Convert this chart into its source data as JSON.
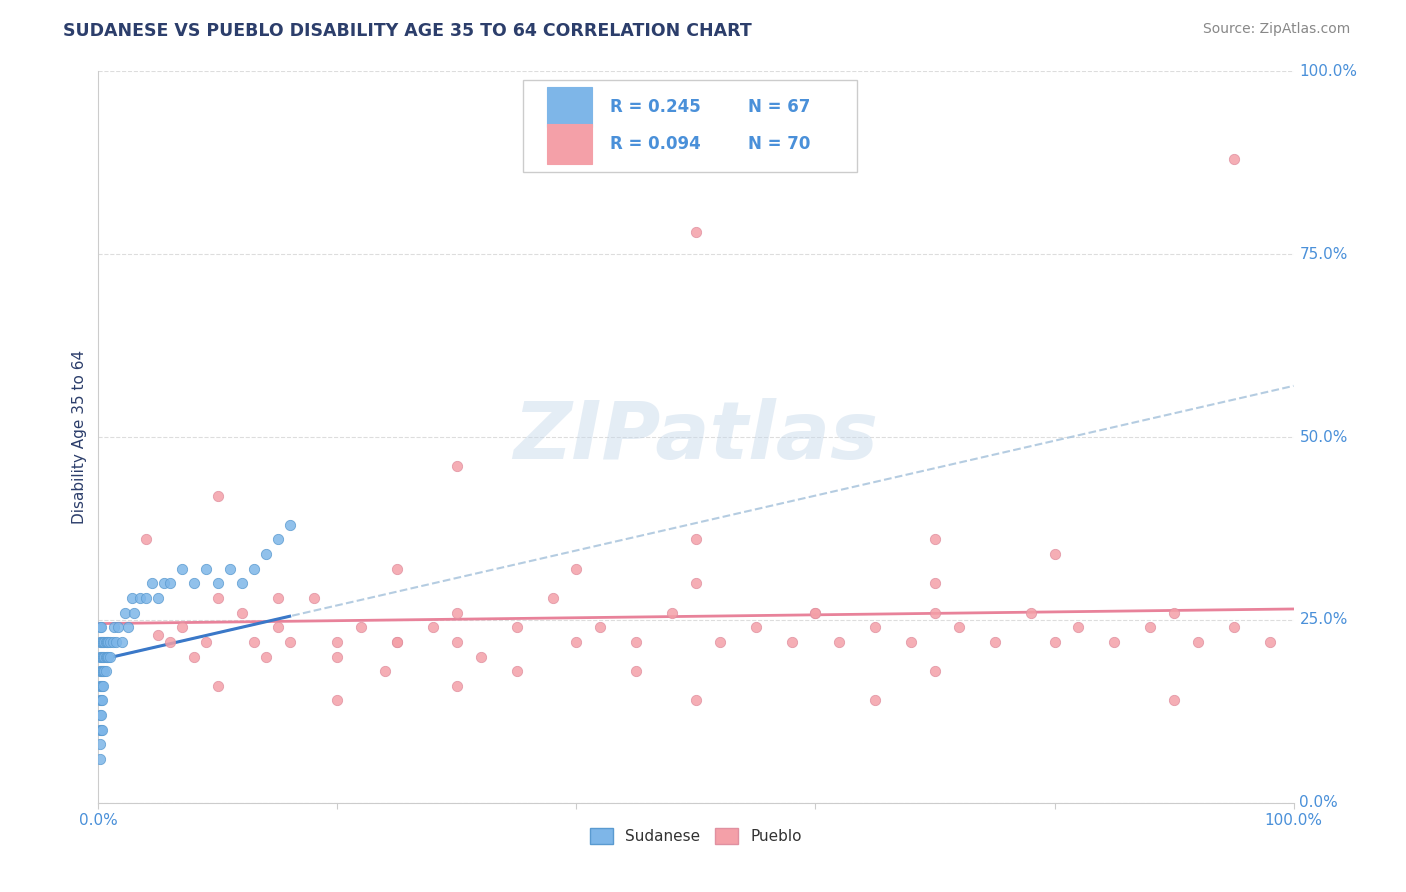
{
  "title": "SUDANESE VS PUEBLO DISABILITY AGE 35 TO 64 CORRELATION CHART",
  "source_text": "Source: ZipAtlas.com",
  "ylabel": "Disability Age 35 to 64",
  "watermark": "ZIPatlas",
  "xlim": [
    0,
    1
  ],
  "ylim": [
    0,
    1
  ],
  "ytick_positions": [
    0,
    0.25,
    0.5,
    0.75,
    1.0
  ],
  "ytick_labels": [
    "0.0%",
    "25.0%",
    "50.0%",
    "75.0%",
    "100.0%"
  ],
  "color_sudanese": "#7EB6E8",
  "color_pueblo": "#F4A0A8",
  "background_color": "#FFFFFF",
  "grid_color": "#DDDDDD",
  "title_color": "#2C3E6B",
  "axis_label_color": "#2C3E6B",
  "tick_label_color": "#4A90D9",
  "sudanese_x": [
    0.001,
    0.001,
    0.001,
    0.001,
    0.001,
    0.001,
    0.001,
    0.001,
    0.001,
    0.001,
    0.002,
    0.002,
    0.002,
    0.002,
    0.002,
    0.002,
    0.002,
    0.002,
    0.003,
    0.003,
    0.003,
    0.003,
    0.003,
    0.003,
    0.004,
    0.004,
    0.004,
    0.004,
    0.005,
    0.005,
    0.005,
    0.006,
    0.006,
    0.006,
    0.007,
    0.007,
    0.008,
    0.008,
    0.01,
    0.01,
    0.012,
    0.013,
    0.015,
    0.016,
    0.02,
    0.022,
    0.025,
    0.028,
    0.03,
    0.035,
    0.04,
    0.045,
    0.05,
    0.055,
    0.06,
    0.07,
    0.08,
    0.09,
    0.1,
    0.11,
    0.12,
    0.13,
    0.14,
    0.15,
    0.16
  ],
  "sudanese_y": [
    0.18,
    0.2,
    0.22,
    0.16,
    0.14,
    0.24,
    0.12,
    0.1,
    0.08,
    0.06,
    0.18,
    0.2,
    0.22,
    0.16,
    0.14,
    0.12,
    0.1,
    0.24,
    0.18,
    0.2,
    0.22,
    0.16,
    0.14,
    0.1,
    0.18,
    0.2,
    0.22,
    0.16,
    0.18,
    0.2,
    0.22,
    0.18,
    0.2,
    0.22,
    0.2,
    0.22,
    0.2,
    0.22,
    0.2,
    0.22,
    0.22,
    0.24,
    0.22,
    0.24,
    0.22,
    0.26,
    0.24,
    0.28,
    0.26,
    0.28,
    0.28,
    0.3,
    0.28,
    0.3,
    0.3,
    0.32,
    0.3,
    0.32,
    0.3,
    0.32,
    0.3,
    0.32,
    0.34,
    0.36,
    0.38
  ],
  "pueblo_x": [
    0.04,
    0.05,
    0.06,
    0.07,
    0.08,
    0.09,
    0.1,
    0.12,
    0.13,
    0.14,
    0.15,
    0.16,
    0.18,
    0.2,
    0.22,
    0.24,
    0.25,
    0.28,
    0.3,
    0.32,
    0.35,
    0.38,
    0.4,
    0.42,
    0.45,
    0.48,
    0.5,
    0.52,
    0.55,
    0.58,
    0.6,
    0.62,
    0.65,
    0.68,
    0.7,
    0.72,
    0.75,
    0.78,
    0.8,
    0.82,
    0.85,
    0.88,
    0.9,
    0.92,
    0.95,
    0.98,
    0.1,
    0.15,
    0.2,
    0.25,
    0.3,
    0.4,
    0.5,
    0.6,
    0.7,
    0.8,
    0.1,
    0.2,
    0.3,
    0.5,
    0.7,
    0.9,
    0.95,
    0.5,
    0.3,
    0.7,
    0.35,
    0.25,
    0.45,
    0.65
  ],
  "pueblo_y": [
    0.36,
    0.23,
    0.22,
    0.24,
    0.2,
    0.22,
    0.28,
    0.26,
    0.22,
    0.2,
    0.24,
    0.22,
    0.28,
    0.22,
    0.24,
    0.18,
    0.22,
    0.24,
    0.22,
    0.2,
    0.24,
    0.28,
    0.22,
    0.24,
    0.22,
    0.26,
    0.3,
    0.22,
    0.24,
    0.22,
    0.26,
    0.22,
    0.24,
    0.22,
    0.26,
    0.24,
    0.22,
    0.26,
    0.22,
    0.24,
    0.22,
    0.24,
    0.26,
    0.22,
    0.24,
    0.22,
    0.42,
    0.28,
    0.2,
    0.32,
    0.26,
    0.32,
    0.36,
    0.26,
    0.3,
    0.34,
    0.16,
    0.14,
    0.16,
    0.14,
    0.18,
    0.14,
    0.88,
    0.78,
    0.46,
    0.36,
    0.18,
    0.22,
    0.18,
    0.14
  ],
  "sudanese_trend_x0": 0.0,
  "sudanese_trend_y0": 0.195,
  "sudanese_trend_x1": 1.0,
  "sudanese_trend_y1": 0.57,
  "pueblo_trend_x0": 0.0,
  "pueblo_trend_y0": 0.245,
  "pueblo_trend_x1": 1.0,
  "pueblo_trend_y1": 0.265
}
